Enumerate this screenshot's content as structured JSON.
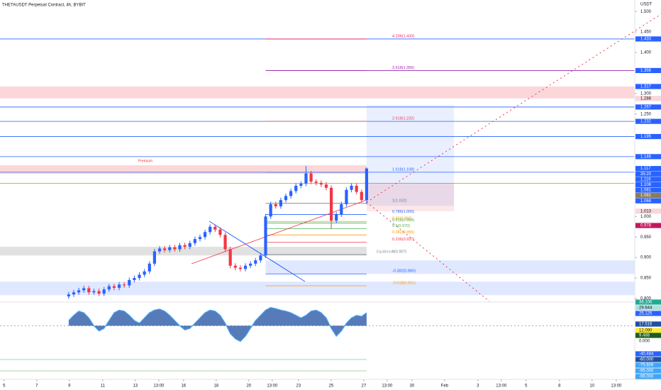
{
  "chart_data": {
    "type": "candlestick",
    "title": "THETAUSDT Perpetual Contract, 4h, BYBIT",
    "y_unit": "USDT",
    "up_color": "#2962ff",
    "down_color": "#f23645",
    "x": [
      0,
      1,
      2,
      3,
      4,
      5,
      6,
      7,
      8,
      9,
      10,
      11,
      12,
      13,
      14,
      15,
      16,
      17,
      18,
      19,
      20,
      21,
      22,
      23,
      24,
      25,
      26,
      27,
      28,
      29,
      30,
      31,
      32,
      33,
      34,
      35,
      36,
      37,
      38,
      39,
      40,
      41,
      42,
      43,
      44,
      45,
      46,
      47,
      48,
      49,
      50,
      51,
      52,
      53,
      54,
      55,
      56,
      57,
      58,
      59
    ],
    "open": [
      0.805,
      0.81,
      0.815,
      0.82,
      0.825,
      0.815,
      0.818,
      0.812,
      0.822,
      0.83,
      0.826,
      0.834,
      0.832,
      0.845,
      0.85,
      0.858,
      0.866,
      0.885,
      0.915,
      0.922,
      0.918,
      0.925,
      0.92,
      0.93,
      0.926,
      0.935,
      0.945,
      0.95,
      0.962,
      0.975,
      0.968,
      0.955,
      0.92,
      0.88,
      0.875,
      0.872,
      0.88,
      0.885,
      0.893,
      0.905,
      1.0,
      1.03,
      1.025,
      1.04,
      1.05,
      1.062,
      1.075,
      1.08,
      1.105,
      1.085,
      1.082,
      1.078,
      1.07,
      0.99,
      1.005,
      1.03,
      1.065,
      1.075,
      1.06,
      1.04
    ],
    "high": [
      0.816,
      0.821,
      0.826,
      0.831,
      0.831,
      0.824,
      0.824,
      0.828,
      0.836,
      0.836,
      0.84,
      0.84,
      0.851,
      0.856,
      0.864,
      0.872,
      0.891,
      0.921,
      0.928,
      0.928,
      0.931,
      0.931,
      0.936,
      0.936,
      0.941,
      0.951,
      0.956,
      0.968,
      0.981,
      0.981,
      0.974,
      0.961,
      0.926,
      0.886,
      0.881,
      0.886,
      0.891,
      0.899,
      0.911,
      1.006,
      1.036,
      1.036,
      1.046,
      1.056,
      1.068,
      1.081,
      1.086,
      1.123,
      1.111,
      1.091,
      1.088,
      1.084,
      1.076,
      1.011,
      1.036,
      1.071,
      1.081,
      1.081,
      1.066,
      1.12
    ],
    "low": [
      0.799,
      0.804,
      0.809,
      0.814,
      0.809,
      0.809,
      0.806,
      0.806,
      0.816,
      0.82,
      0.82,
      0.826,
      0.826,
      0.839,
      0.844,
      0.852,
      0.86,
      0.879,
      0.909,
      0.912,
      0.912,
      0.914,
      0.914,
      0.92,
      0.92,
      0.929,
      0.939,
      0.944,
      0.956,
      0.962,
      0.949,
      0.914,
      0.874,
      0.869,
      0.866,
      0.866,
      0.874,
      0.879,
      0.887,
      0.899,
      0.994,
      1.019,
      1.019,
      1.034,
      1.044,
      1.056,
      1.069,
      1.074,
      1.079,
      1.076,
      1.072,
      1.064,
      0.97,
      0.984,
      0.999,
      1.024,
      1.059,
      1.054,
      1.034,
      1.03
    ],
    "close": [
      0.81,
      0.815,
      0.82,
      0.825,
      0.815,
      0.818,
      0.812,
      0.822,
      0.83,
      0.826,
      0.834,
      0.832,
      0.845,
      0.85,
      0.858,
      0.866,
      0.885,
      0.915,
      0.922,
      0.918,
      0.925,
      0.92,
      0.93,
      0.926,
      0.935,
      0.945,
      0.95,
      0.962,
      0.975,
      0.968,
      0.955,
      0.92,
      0.88,
      0.875,
      0.872,
      0.88,
      0.885,
      0.893,
      0.905,
      1.0,
      1.03,
      1.025,
      1.04,
      1.05,
      1.062,
      1.075,
      1.08,
      1.105,
      1.085,
      1.082,
      1.078,
      1.07,
      0.99,
      1.005,
      1.03,
      1.065,
      1.075,
      1.06,
      1.04,
      1.117
    ],
    "xlim": [
      -13.6,
      112.1
    ],
    "ylim": [
      0.793,
      1.528
    ],
    "xticks": [
      {
        "value": -12.78,
        "label": "5"
      },
      {
        "value": -6.32,
        "label": "7"
      },
      {
        "value": 0.14,
        "label": "9"
      },
      {
        "value": 6.74,
        "label": "11"
      },
      {
        "value": 13.2,
        "label": "13"
      },
      {
        "value": 17.84,
        "label": "13:00"
      },
      {
        "value": 22.75,
        "label": "16"
      },
      {
        "value": 29.21,
        "label": "18"
      },
      {
        "value": 35.67,
        "label": "20"
      },
      {
        "value": 40.31,
        "label": "13:00"
      },
      {
        "value": 45.51,
        "label": "23"
      },
      {
        "value": 51.97,
        "label": "25"
      },
      {
        "value": 58.43,
        "label": "27"
      },
      {
        "value": 63.06,
        "label": "13:00"
      },
      {
        "value": 67.98,
        "label": "30"
      },
      {
        "value": 74.44,
        "label": "Feb"
      },
      {
        "value": 81.04,
        "label": "3"
      },
      {
        "value": 85.67,
        "label": "13:00"
      },
      {
        "value": 90.59,
        "label": "5"
      },
      {
        "value": 97.19,
        "label": "8"
      },
      {
        "value": 103.65,
        "label": "10"
      },
      {
        "value": 108.43,
        "label": "13:00"
      }
    ],
    "yticks": [
      {
        "value": 0.8,
        "label": "0.800"
      },
      {
        "value": 0.85,
        "label": "0.850"
      },
      {
        "value": 0.9,
        "label": "0.900"
      },
      {
        "value": 0.95,
        "label": "0.950"
      },
      {
        "value": 1.0,
        "label": "1.000"
      },
      {
        "value": 1.25,
        "label": "1.250"
      },
      {
        "value": 1.3,
        "label": "1.300"
      },
      {
        "value": 1.4,
        "label": "1.400"
      },
      {
        "value": 1.45,
        "label": "1.450"
      },
      {
        "value": 1.5,
        "label": "1.500"
      }
    ],
    "levels": [
      {
        "value": 1.433,
        "color": "#2962ff",
        "from": -13.6
      },
      {
        "value": 1.356,
        "color": "#9c27b0",
        "from": 39
      },
      {
        "value": 1.267,
        "color": "#2962ff",
        "from": -13.6
      },
      {
        "value": 1.232,
        "color": "#2962ff",
        "from": -13.6
      },
      {
        "value": 1.195,
        "color": "#2962ff",
        "from": -13.6
      },
      {
        "value": 1.146,
        "color": "#2962ff",
        "from": -13.6
      },
      {
        "value": 1.108,
        "color": "#2962ff",
        "from": -13.6
      },
      {
        "value": 1.081,
        "color": "#9c9c3a",
        "from": -13.6
      }
    ],
    "zones": [
      {
        "bottom": 1.288,
        "top": 1.317,
        "from": -13.6,
        "to": 112.1,
        "color": "rgba(242,54,69,0.2)"
      },
      {
        "bottom": 1.104,
        "top": 1.125,
        "from": -13.6,
        "to": 59,
        "color": "rgba(242,54,69,0.2)"
      },
      {
        "bottom": 1.026,
        "top": 1.272,
        "from": 59,
        "to": 76.3,
        "color": "rgba(41,98,255,0.1)"
      },
      {
        "bottom": 1.013,
        "top": 1.082,
        "from": 59,
        "to": 76.3,
        "color": "rgba(242,54,69,0.12)"
      },
      {
        "bottom": 0.905,
        "top": 0.926,
        "from": -13.6,
        "to": 59,
        "color": "rgba(120,120,120,0.22)"
      },
      {
        "bottom": 0.86,
        "top": 0.893,
        "from": 39,
        "to": 112.1,
        "color": "rgba(41,98,255,0.15)"
      },
      {
        "bottom": 0.808,
        "top": 0.841,
        "from": -13.6,
        "to": 112.1,
        "color": "rgba(41,98,255,0.15)"
      }
    ],
    "fib": [
      {
        "label": "4.236(1.433)",
        "value": 1.433,
        "color": "#e91e63"
      },
      {
        "label": "3.618(1.356)",
        "value": 1.356,
        "color": "#9c27b0"
      },
      {
        "label": "2.618(1.232)",
        "value": 1.232,
        "color": "#f23645"
      },
      {
        "label": "1.618(1.108)",
        "value": 1.108,
        "color": "#2962ff"
      },
      {
        "label": "1(1.032)",
        "value": 1.032,
        "color": "#787b86"
      },
      {
        "label": "0.786(1.005)",
        "value": 1.005,
        "color": "#2962ff"
      },
      {
        "label": "0.65(0.988)",
        "value": 0.988,
        "color": "#ff9800"
      },
      {
        "label": "0.618(0.984)",
        "value": 0.984,
        "color": "#4caf50"
      },
      {
        "label": "0.5(0.970)",
        "value": 0.97,
        "color": "#4caf50"
      },
      {
        "label": "0.382(0.955)",
        "value": 0.955,
        "color": "#ff9800"
      },
      {
        "label": "0.236(0.937)",
        "value": 0.937,
        "color": "#f23645"
      },
      {
        "label": "0(0.907)",
        "value": 0.907,
        "color": "#787b86"
      },
      {
        "label": "-0.382(0.860)",
        "value": 0.86,
        "color": "#2962ff"
      },
      {
        "label": "-0.618(0.831)",
        "value": 0.831,
        "color": "#ff9800"
      }
    ],
    "annotations": [
      "Premium",
      "Equilibrium"
    ],
    "price_labels": [
      {
        "value": 1.433,
        "label": "1.433",
        "color": "#2962ff"
      },
      {
        "value": 1.356,
        "label": "1.356",
        "color": "#2962ff"
      },
      {
        "value": 1.317,
        "label": "1.317",
        "color": "#2962ff"
      },
      {
        "value": 1.288,
        "label": "1.288",
        "color": "#f8d7da"
      },
      {
        "value": 1.267,
        "label": "1.267",
        "color": "#2962ff"
      },
      {
        "value": 1.232,
        "label": "1.232",
        "color": "#2962ff"
      },
      {
        "value": 1.195,
        "label": "1.195",
        "color": "#2962ff"
      },
      {
        "value": 1.146,
        "label": "1.146",
        "color": "#2962ff"
      },
      {
        "value": 1.117,
        "label": "1.117",
        "color": "#2962ff"
      },
      {
        "value": 1.116,
        "label": "1.116",
        "color": "#2962ff"
      },
      {
        "value": 1.108,
        "label": "1.108",
        "color": "#2962ff"
      },
      {
        "value": 1.081,
        "label": "1.081",
        "color": "#2962ff"
      },
      {
        "value": 1.081,
        "label": "1.081",
        "color": "#8d7b55"
      },
      {
        "value": 1.068,
        "label": "1.068",
        "color": "#2962ff"
      },
      {
        "value": 1.013,
        "label": "1.013",
        "color": "#f8d7da"
      },
      {
        "value": 0.978,
        "label": "0.978",
        "color": "#c2185b"
      }
    ],
    "countdown": "35:20",
    "oscillator": {
      "ylim": [
        -100,
        40
      ],
      "color": "#1e4fa0",
      "values": [
        10,
        20,
        28,
        25,
        15,
        0,
        -10,
        -5,
        10,
        25,
        30,
        28,
        20,
        10,
        5,
        15,
        25,
        30,
        32,
        28,
        20,
        10,
        0,
        -8,
        -5,
        5,
        15,
        25,
        30,
        28,
        20,
        5,
        -15,
        -25,
        -30,
        -20,
        -5,
        10,
        20,
        30,
        35,
        33,
        30,
        28,
        25,
        20,
        15,
        20,
        28,
        30,
        25,
        15,
        -5,
        -20,
        -10,
        5,
        15,
        20,
        18,
        25
      ],
      "labels": [
        {
          "value": 36.106,
          "label": "36.106",
          "color": "#22ab94"
        },
        {
          "value": 29.644,
          "label": "29.644",
          "color": "#b2dfdb"
        },
        {
          "value": 25.125,
          "label": "25.125",
          "color": "#2962ff"
        },
        {
          "value": 17.516,
          "label": "17.516",
          "color": "#1e4fa0"
        },
        {
          "value": 12.09,
          "label": "12.090",
          "color": "#ffeb3b"
        },
        {
          "value": 9.488,
          "label": "9.488",
          "color": "#1b5e20"
        },
        {
          "value": 0,
          "label": "0.000",
          "color": "#ffffff"
        },
        {
          "value": -40.484,
          "label": "-40.484",
          "color": "#2962ff"
        },
        {
          "value": -60,
          "label": "-60.000",
          "color": "#1e4fa0"
        },
        {
          "value": -75.609,
          "label": "-75.609",
          "color": "#42a5f5"
        },
        {
          "value": -95,
          "label": "-95.000",
          "color": "#42a5f5"
        },
        {
          "value": -99,
          "label": "-99.000",
          "color": "#42a5f5"
        }
      ]
    }
  }
}
